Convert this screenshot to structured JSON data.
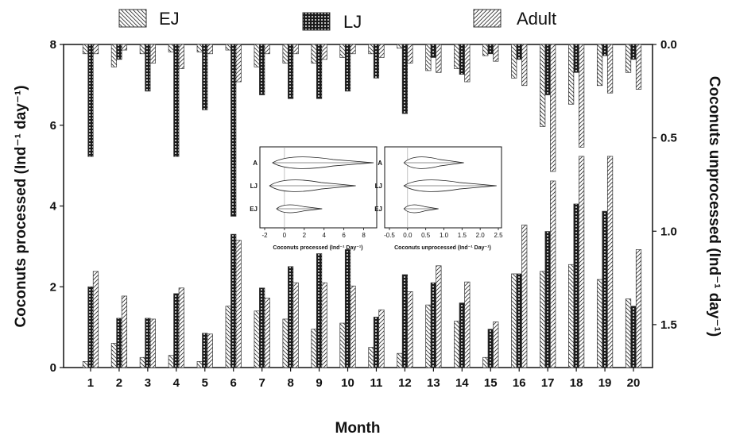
{
  "chart_data": {
    "type": "bar",
    "xlabel": "Month",
    "ylabel_left": "Coconuts processed (Ind⁻¹ day⁻¹)",
    "ylabel_right": "Coconuts unprocessed (Ind⁻¹ day⁻¹)",
    "categories": [
      "1",
      "2",
      "3",
      "4",
      "5",
      "6",
      "7",
      "8",
      "9",
      "10",
      "11",
      "12",
      "13",
      "14",
      "15",
      "16",
      "17",
      "18",
      "19",
      "20"
    ],
    "ylim_left": [
      0,
      8
    ],
    "yticks_left": [
      "0",
      "2",
      "4",
      "6",
      "8"
    ],
    "ylim_right_inverted": [
      0,
      1.73
    ],
    "yticks_right": [
      "0.0",
      "0.5",
      "1.0",
      "1.5"
    ],
    "grid": false,
    "legend": {
      "placement": "top",
      "entries": [
        {
          "label": "EJ",
          "pattern": "backslash-hatch"
        },
        {
          "label": "LJ",
          "pattern": "dark-checker"
        },
        {
          "label": "Adult",
          "pattern": "slash-hatch"
        }
      ]
    },
    "series_processed": [
      {
        "name": "EJ",
        "values": [
          0.15,
          0.6,
          0.25,
          0.3,
          0.15,
          1.52,
          1.4,
          1.2,
          0.95,
          1.1,
          0.5,
          0.35,
          1.55,
          1.15,
          0.25,
          2.32,
          2.38,
          2.55,
          2.18,
          1.7
        ]
      },
      {
        "name": "LJ",
        "values": [
          2.0,
          1.22,
          1.22,
          1.83,
          0.85,
          3.3,
          1.97,
          2.5,
          2.82,
          2.92,
          1.25,
          2.3,
          2.1,
          1.6,
          0.95,
          2.32,
          3.37,
          4.05,
          3.87,
          1.52
        ]
      },
      {
        "name": "Adult",
        "values": [
          2.38,
          1.77,
          1.2,
          1.97,
          0.83,
          3.15,
          1.72,
          2.1,
          2.1,
          2.02,
          1.43,
          1.88,
          2.52,
          2.12,
          1.13,
          3.53,
          4.62,
          5.23,
          5.23,
          2.92
        ]
      }
    ],
    "series_unprocessed": [
      {
        "name": "EJ",
        "values": [
          0.05,
          0.12,
          0.05,
          0.04,
          0.04,
          0.03,
          0.12,
          0.1,
          0.1,
          0.07,
          0.05,
          0.02,
          0.14,
          0.13,
          0.06,
          0.18,
          0.44,
          0.32,
          0.22,
          0.15
        ]
      },
      {
        "name": "LJ",
        "values": [
          0.6,
          0.08,
          0.25,
          0.6,
          0.35,
          0.92,
          0.27,
          0.29,
          0.29,
          0.25,
          0.18,
          0.37,
          0.07,
          0.16,
          0.05,
          0.08,
          0.27,
          0.15,
          0.06,
          0.08
        ]
      },
      {
        "name": "Adult",
        "values": [
          0.05,
          0.03,
          0.1,
          0.13,
          0.05,
          0.2,
          0.05,
          0.05,
          0.08,
          0.05,
          0.07,
          0.1,
          0.15,
          0.2,
          0.09,
          0.22,
          0.68,
          0.55,
          0.26,
          0.24
        ]
      }
    ],
    "insets": [
      {
        "xlabel": "Coconuts processed (Ind⁻¹ Day⁻¹)",
        "xticks": [
          "-2",
          "0",
          "2",
          "4",
          "6",
          "8"
        ],
        "xlim": [
          -2,
          9
        ],
        "groups": [
          "A",
          "LJ",
          "EJ"
        ],
        "violin_extents": [
          [
            -1.2,
            9
          ],
          [
            -1.5,
            7.2
          ],
          [
            -0.8,
            3.8
          ]
        ]
      },
      {
        "xlabel": "Coconuts unprocessed (Ind⁻¹ Day⁻¹)",
        "xticks": [
          "-0.5",
          "0.0",
          "0.5",
          "1.0",
          "1.5",
          "2.0",
          "2.5"
        ],
        "xlim": [
          -0.5,
          2.5
        ],
        "groups": [
          "A",
          "LJ",
          "EJ"
        ],
        "violin_extents": [
          [
            -0.1,
            1.55
          ],
          [
            -0.1,
            2.45
          ],
          [
            -0.1,
            0.85
          ]
        ]
      }
    ]
  }
}
